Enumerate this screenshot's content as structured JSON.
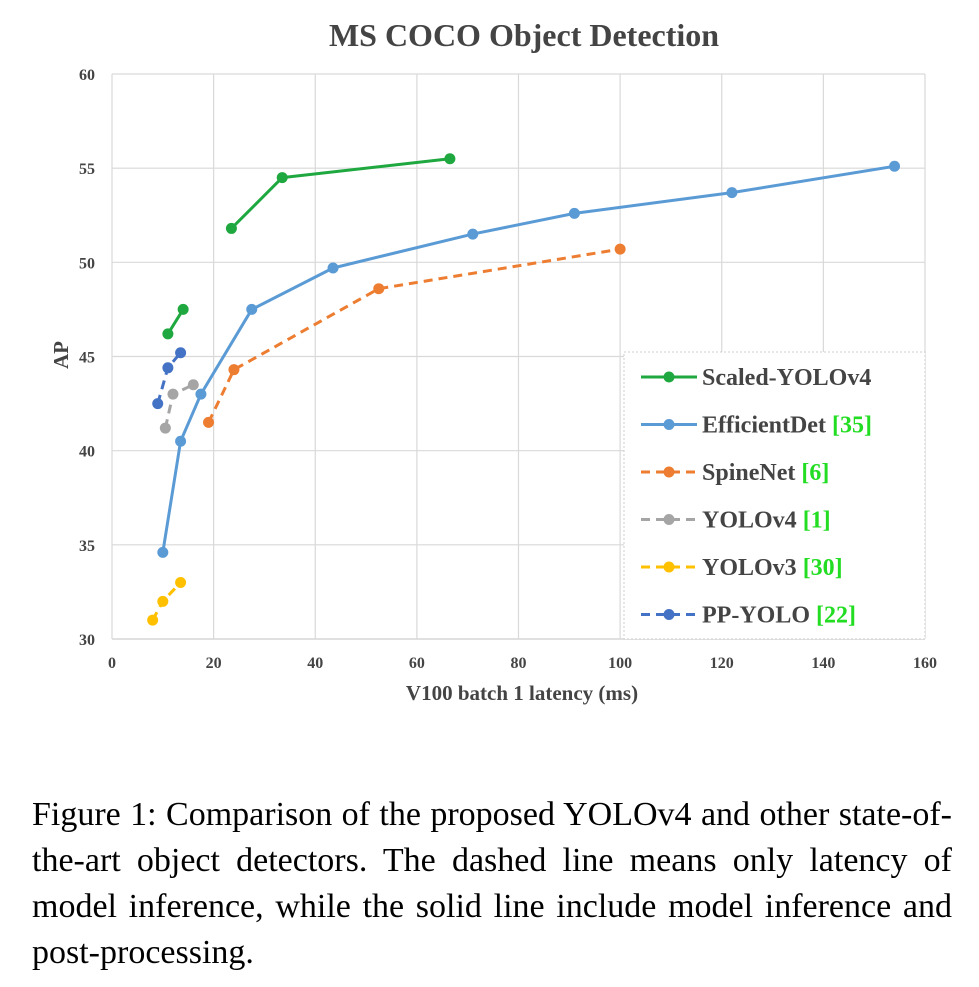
{
  "caption": "Figure 1: Comparison of the proposed YOLOv4 and other state-of-the-art object detectors. The dashed line means only latency of model inference, while the solid line include model inference and post-processing.",
  "chart_data": {
    "type": "line",
    "title": "MS COCO Object Detection",
    "xlabel": "V100 batch 1 latency (ms)",
    "ylabel": "AP",
    "xlim": [
      0,
      160
    ],
    "ylim": [
      30,
      60
    ],
    "xticks": [
      0,
      20,
      40,
      60,
      80,
      100,
      120,
      140,
      160
    ],
    "yticks": [
      30,
      35,
      40,
      45,
      50,
      55,
      60
    ],
    "grid": true,
    "legend_position": "bottom-right",
    "series": [
      {
        "name": "Scaled-YOLOv4",
        "ref": "",
        "color": "#1fa83f",
        "dashed": false,
        "segments": [
          [
            [
              11,
              46.2
            ],
            [
              14,
              47.5
            ]
          ],
          [
            [
              23.5,
              51.8
            ],
            [
              33.5,
              54.5
            ],
            [
              66.5,
              55.5
            ]
          ]
        ]
      },
      {
        "name": "EfficientDet",
        "ref": "[35]",
        "color": "#5b9bd5",
        "dashed": false,
        "segments": [
          [
            [
              10,
              34.6
            ],
            [
              13.5,
              40.5
            ],
            [
              17.5,
              43.0
            ],
            [
              27.5,
              47.5
            ],
            [
              43.5,
              49.7
            ],
            [
              71,
              51.5
            ],
            [
              91,
              52.6
            ],
            [
              122,
              53.7
            ],
            [
              154,
              55.1
            ]
          ]
        ]
      },
      {
        "name": "SpineNet",
        "ref": "[6]",
        "color": "#ed7d31",
        "dashed": true,
        "segments": [
          [
            [
              19,
              41.5
            ],
            [
              24,
              44.3
            ],
            [
              52.5,
              48.6
            ],
            [
              100,
              50.7
            ]
          ]
        ]
      },
      {
        "name": "YOLOv4",
        "ref": "[1]",
        "color": "#a5a5a5",
        "dashed": true,
        "segments": [
          [
            [
              10.5,
              41.2
            ],
            [
              12,
              43.0
            ],
            [
              16,
              43.5
            ]
          ]
        ]
      },
      {
        "name": "YOLOv3",
        "ref": "[30]",
        "color": "#ffc000",
        "dashed": true,
        "segments": [
          [
            [
              8,
              31.0
            ],
            [
              10,
              32.0
            ],
            [
              13.5,
              33.0
            ]
          ]
        ]
      },
      {
        "name": "PP-YOLO",
        "ref": "[22]",
        "color": "#4472c4",
        "dashed": true,
        "segments": [
          [
            [
              9,
              42.5
            ],
            [
              11,
              44.4
            ],
            [
              13.5,
              45.2
            ]
          ]
        ]
      }
    ]
  }
}
